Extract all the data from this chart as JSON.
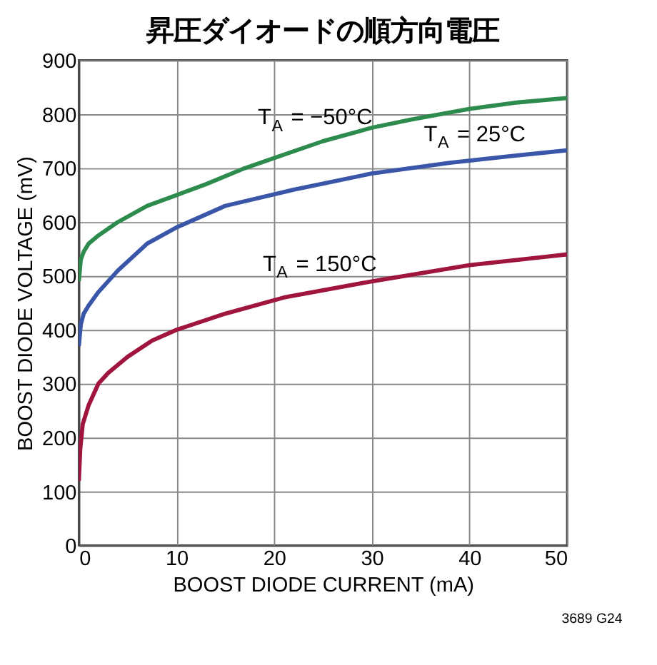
{
  "chart_data": {
    "type": "line",
    "title": "昇圧ダイオードの順方向電圧",
    "xlabel": "BOOST DIODE CURRENT (mA)",
    "ylabel": "BOOST DIODE VOLTAGE (mV)",
    "series": [
      {
        "color": "#2e8b4e",
        "x": [
          0,
          0.2,
          0.5,
          1,
          2,
          4,
          7,
          10,
          13,
          17,
          21,
          25,
          30,
          34,
          40,
          45,
          50
        ],
        "values": [
          490,
          530,
          545,
          560,
          575,
          600,
          630,
          650,
          670,
          700,
          725,
          750,
          775,
          790,
          810,
          822,
          830
        ]
      },
      {
        "color": "#3a56a8",
        "x": [
          0,
          0.2,
          0.5,
          1,
          2,
          4,
          7,
          10,
          15,
          22,
          30,
          38,
          44,
          50
        ],
        "values": [
          370,
          410,
          430,
          445,
          470,
          510,
          560,
          590,
          630,
          660,
          690,
          710,
          722,
          733
        ]
      },
      {
        "color": "#a0153e",
        "x": [
          0,
          0.15,
          0.4,
          1,
          2,
          3,
          5,
          7.5,
          10,
          15,
          21,
          30,
          40,
          50
        ],
        "values": [
          120,
          180,
          225,
          260,
          300,
          320,
          350,
          380,
          400,
          430,
          460,
          490,
          520,
          540
        ]
      }
    ],
    "xlim": [
      0,
      50
    ],
    "xticks": [
      0,
      10,
      20,
      30,
      40,
      50
    ],
    "ylim": [
      0,
      900
    ],
    "yticks": [
      0,
      100,
      200,
      300,
      400,
      500,
      600,
      700,
      800,
      900
    ],
    "grid": true,
    "line_style": "solid",
    "marker": "none",
    "annotations": [
      {
        "text": "T$_{A}$ = −50°C",
        "x": 24,
        "y": 743
      },
      {
        "text": "T$_{A}$ = 25°C",
        "x": 41,
        "y": 712
      },
      {
        "text": "T$_{A}$ = 150°C",
        "x": 24.5,
        "y": 471
      },
      "3689 G24"
    ]
  }
}
